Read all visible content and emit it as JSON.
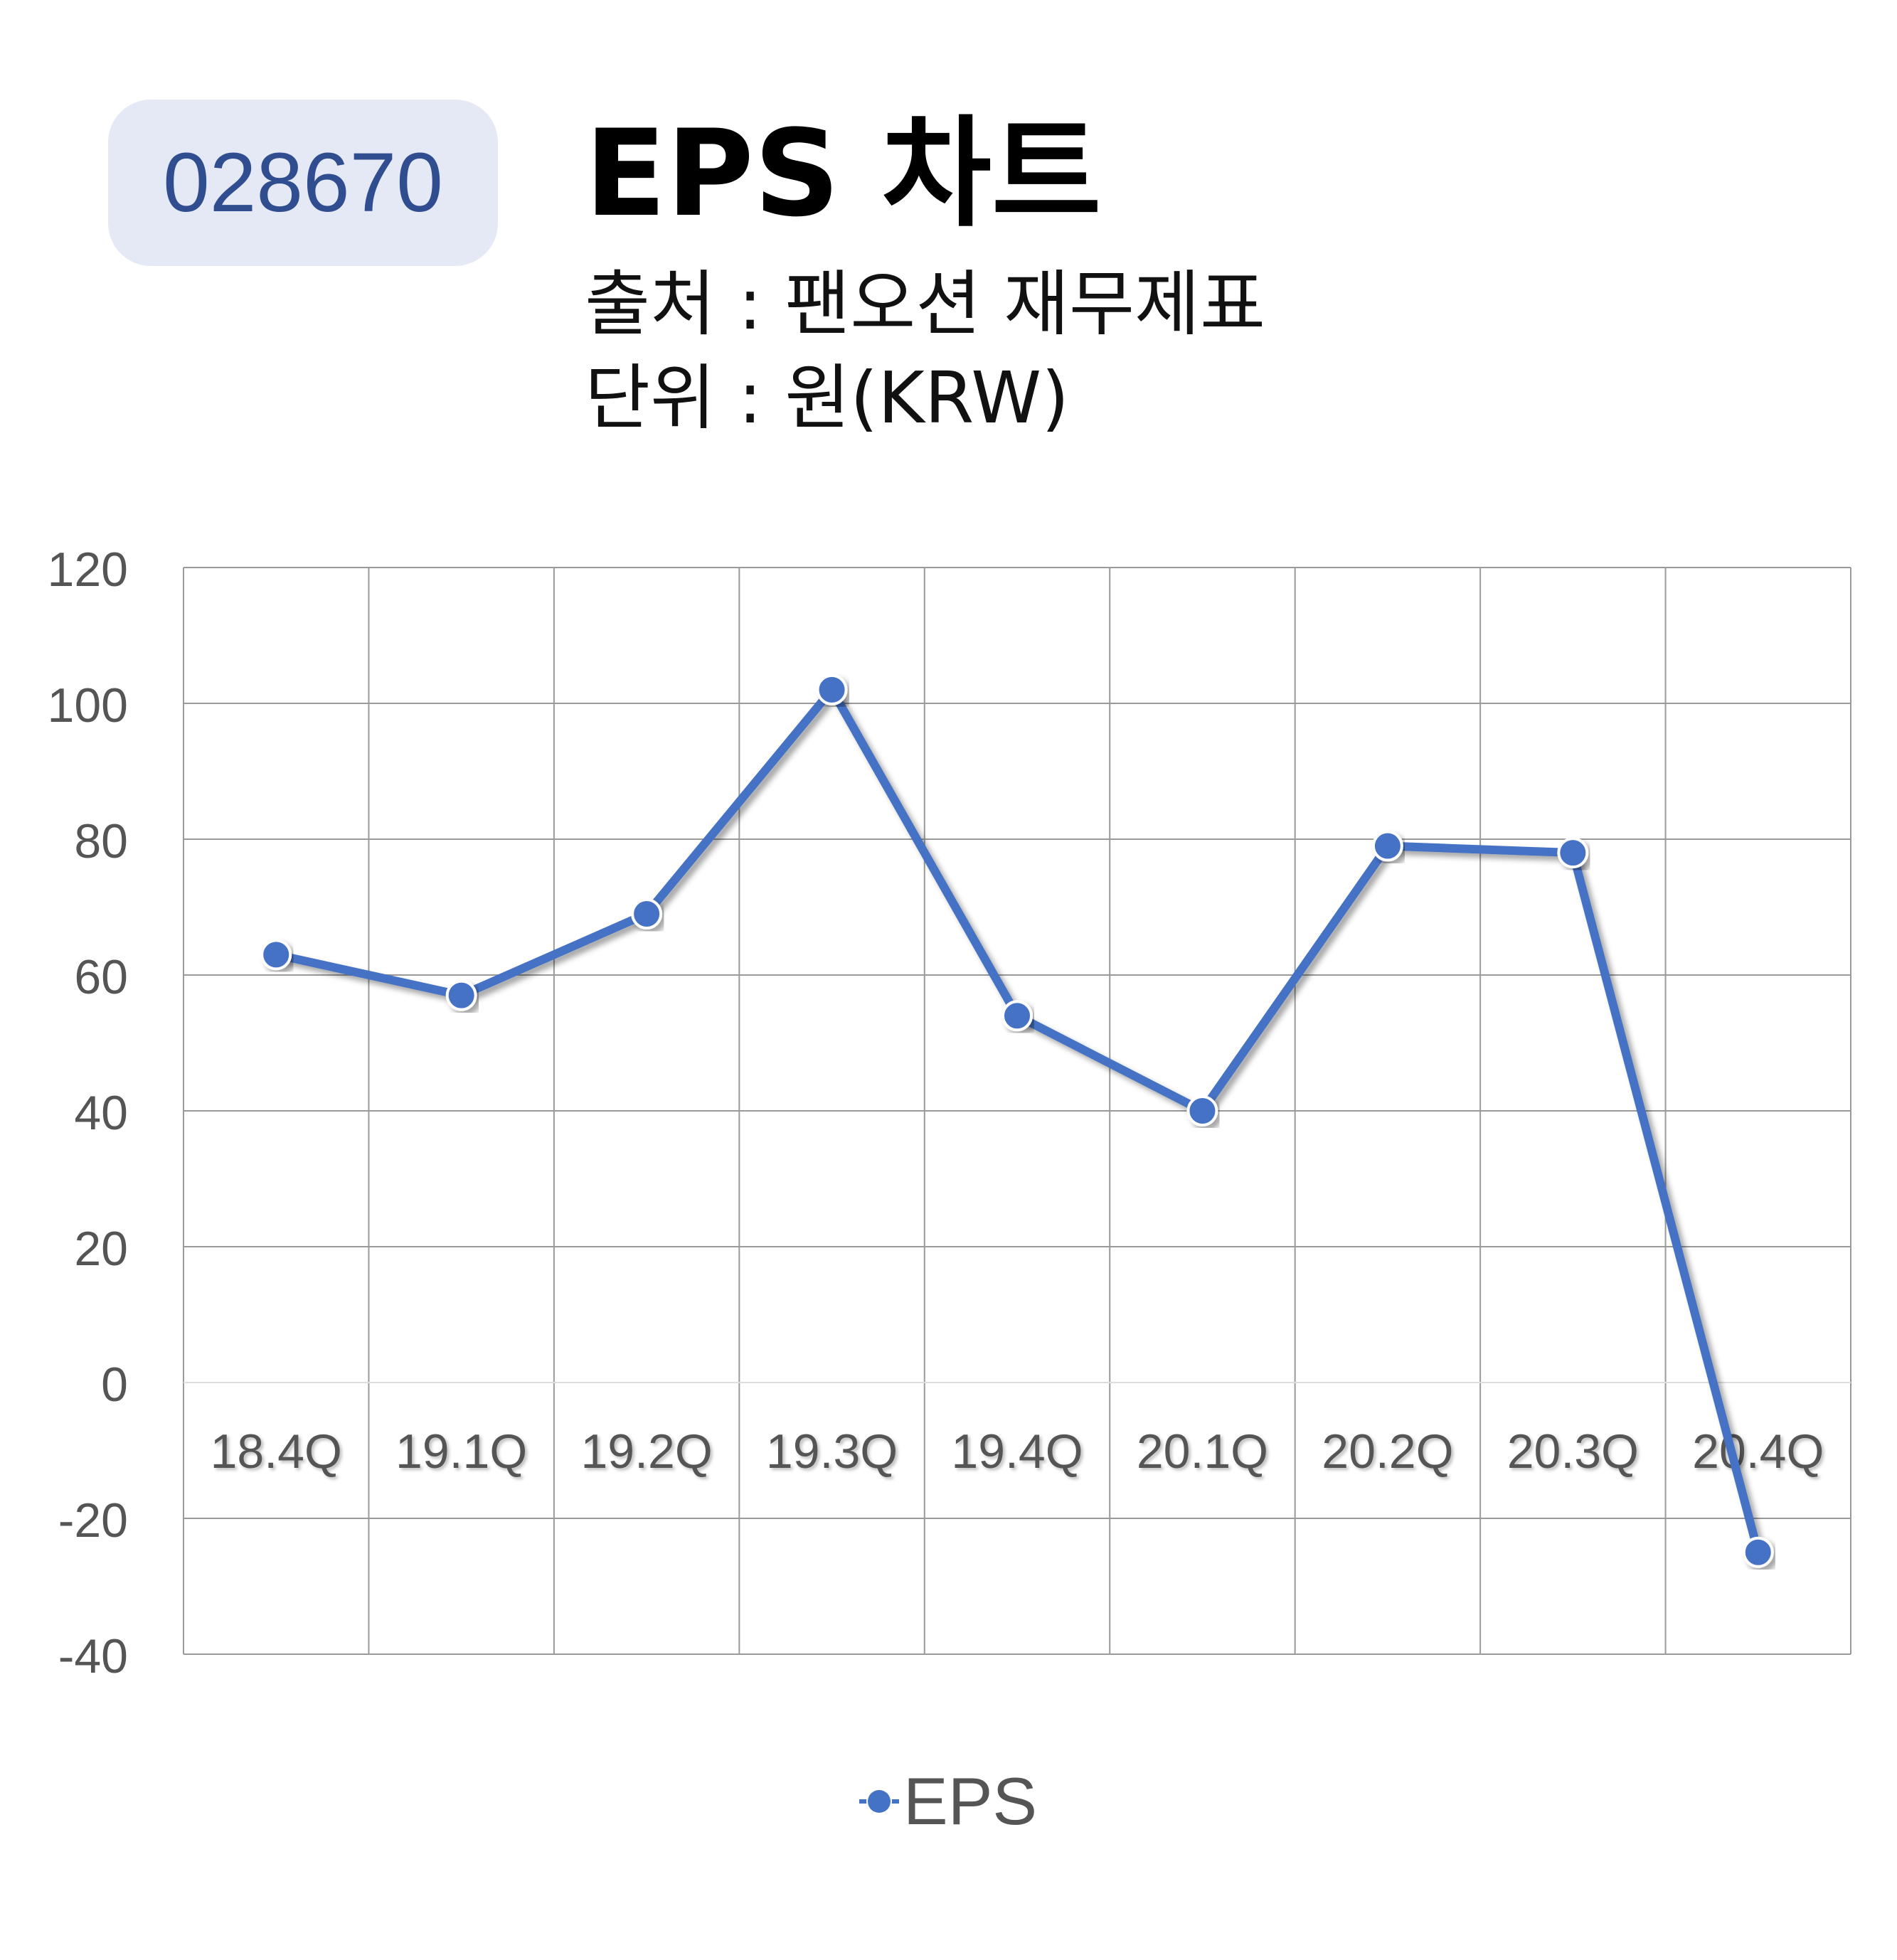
{
  "header": {
    "code": "028670",
    "title": "EPS 차트",
    "source": "출처 : 팬오션 재무제표",
    "unit": "단위 : 원(KRW)"
  },
  "chart_data": {
    "type": "line",
    "title": "EPS 차트",
    "categories": [
      "18.4Q",
      "19.1Q",
      "19.2Q",
      "19.3Q",
      "19.4Q",
      "20.1Q",
      "20.2Q",
      "20.3Q",
      "20.4Q"
    ],
    "series": [
      {
        "name": "EPS",
        "values": [
          63,
          57,
          69,
          102,
          54,
          40,
          79,
          78,
          -25
        ],
        "color": "#4472c4"
      }
    ],
    "yticks": [
      "120",
      "100",
      "80",
      "60",
      "40",
      "20",
      "0",
      "-20",
      "-40"
    ],
    "ylim": [
      -40,
      120
    ],
    "grid": true,
    "legend": "bottom"
  }
}
